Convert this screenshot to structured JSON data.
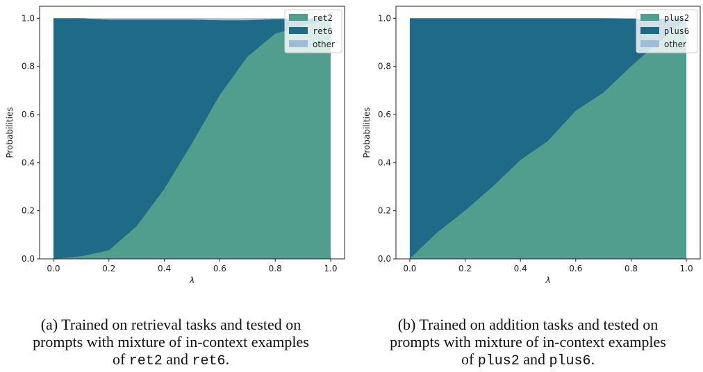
{
  "colors": {
    "series_a": "#519e8e",
    "series_b": "#1f6a87",
    "other": "#9ebcd6",
    "axis": "#222222"
  },
  "chart_data": [
    {
      "type": "area",
      "stacked": true,
      "title": "",
      "xlabel": "λ",
      "ylabel": "Probabilities",
      "xlim": [
        -0.05,
        1.05
      ],
      "ylim": [
        0.0,
        1.05
      ],
      "x_ticks": [
        "0.0",
        "0.2",
        "0.4",
        "0.6",
        "0.8",
        "1.0"
      ],
      "y_ticks": [
        "0.0",
        "0.2",
        "0.4",
        "0.6",
        "0.8",
        "1.0"
      ],
      "grid": false,
      "legend_position": "upper right",
      "x": [
        0.0,
        0.1,
        0.2,
        0.3,
        0.4,
        0.5,
        0.6,
        0.7,
        0.8,
        0.9,
        1.0
      ],
      "series": [
        {
          "name": "ret2",
          "values": [
            0.0,
            0.01,
            0.035,
            0.135,
            0.29,
            0.48,
            0.68,
            0.84,
            0.935,
            0.97,
            0.995
          ]
        },
        {
          "name": "ret6",
          "values": [
            1.0,
            0.99,
            0.96,
            0.86,
            0.705,
            0.515,
            0.312,
            0.152,
            0.062,
            0.028,
            0.004
          ]
        },
        {
          "name": "other",
          "values": [
            0.0,
            0.0,
            0.005,
            0.005,
            0.005,
            0.005,
            0.008,
            0.008,
            0.003,
            0.002,
            0.001
          ]
        }
      ]
    },
    {
      "type": "area",
      "stacked": true,
      "title": "",
      "xlabel": "λ",
      "ylabel": "Probabilities",
      "xlim": [
        -0.05,
        1.05
      ],
      "ylim": [
        0.0,
        1.05
      ],
      "x_ticks": [
        "0.0",
        "0.2",
        "0.4",
        "0.6",
        "0.8",
        "1.0"
      ],
      "y_ticks": [
        "0.0",
        "0.2",
        "0.4",
        "0.6",
        "0.8",
        "1.0"
      ],
      "grid": false,
      "legend_position": "upper right",
      "x": [
        0.0,
        0.1,
        0.2,
        0.3,
        0.4,
        0.5,
        0.6,
        0.7,
        0.8,
        0.9,
        1.0
      ],
      "series": [
        {
          "name": "plus2",
          "values": [
            0.0,
            0.11,
            0.2,
            0.3,
            0.41,
            0.49,
            0.615,
            0.69,
            0.8,
            0.9,
            0.998
          ]
        },
        {
          "name": "plus6",
          "values": [
            1.0,
            0.89,
            0.8,
            0.7,
            0.59,
            0.51,
            0.385,
            0.31,
            0.199,
            0.099,
            0.001
          ]
        },
        {
          "name": "other",
          "values": [
            0.0,
            0.0,
            0.0,
            0.0,
            0.0,
            0.0,
            0.0,
            0.0,
            0.001,
            0.001,
            0.001
          ]
        }
      ]
    }
  ],
  "panels": {
    "a": {
      "ylabel": "Probabilities",
      "xlabel": "λ",
      "legend": [
        "ret2",
        "ret6",
        "other"
      ],
      "caption": {
        "line1": "(a) Trained on retrieval tasks and tested on",
        "line2": "prompts with mixture of in-context examples",
        "line3_prefix": "of ",
        "code1": "ret2",
        "mid": " and ",
        "code2": "ret6",
        "suffix": "."
      }
    },
    "b": {
      "ylabel": "Probabilities",
      "xlabel": "λ",
      "legend": [
        "plus2",
        "plus6",
        "other"
      ],
      "caption": {
        "line1": "(b) Trained on addition tasks and tested on",
        "line2": "prompts with mixture of in-context examples",
        "line3_prefix": "of ",
        "code1": "plus2",
        "mid": " and ",
        "code2": "plus6",
        "suffix": "."
      }
    }
  }
}
